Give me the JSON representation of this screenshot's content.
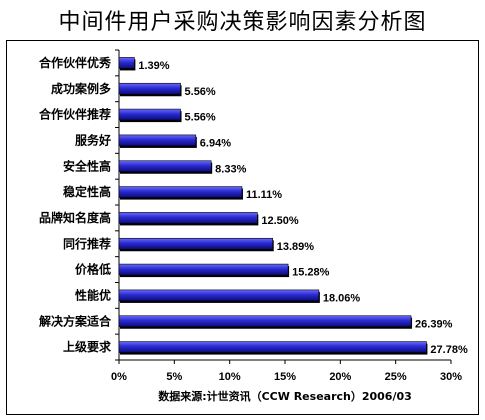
{
  "chart_data": {
    "type": "bar",
    "orientation": "horizontal",
    "title": "中间件用户采购决策影响因素分析图",
    "categories": [
      "合作伙伴优秀",
      "成功案例多",
      "合作伙伴推荐",
      "服务好",
      "安全性高",
      "稳定性高",
      "品牌知名度高",
      "同行推荐",
      "价格低",
      "性能优",
      "解决方案适合",
      "上级要求"
    ],
    "values": [
      1.39,
      5.56,
      5.56,
      6.94,
      8.33,
      11.11,
      12.5,
      13.89,
      15.28,
      18.06,
      26.39,
      27.78
    ],
    "value_labels": [
      "1.39%",
      "5.56%",
      "5.56%",
      "6.94%",
      "8.33%",
      "11.11%",
      "12.50%",
      "13.89%",
      "15.28%",
      "18.06%",
      "26.39%",
      "27.78%"
    ],
    "xlim": [
      0,
      30
    ],
    "xticks": [
      "0%",
      "5%",
      "10%",
      "15%",
      "20%",
      "25%",
      "30%"
    ],
    "source": "数据来源:计世资讯（CCW Research）2006/03",
    "bar_color": "#2a2acf",
    "grid": false
  }
}
